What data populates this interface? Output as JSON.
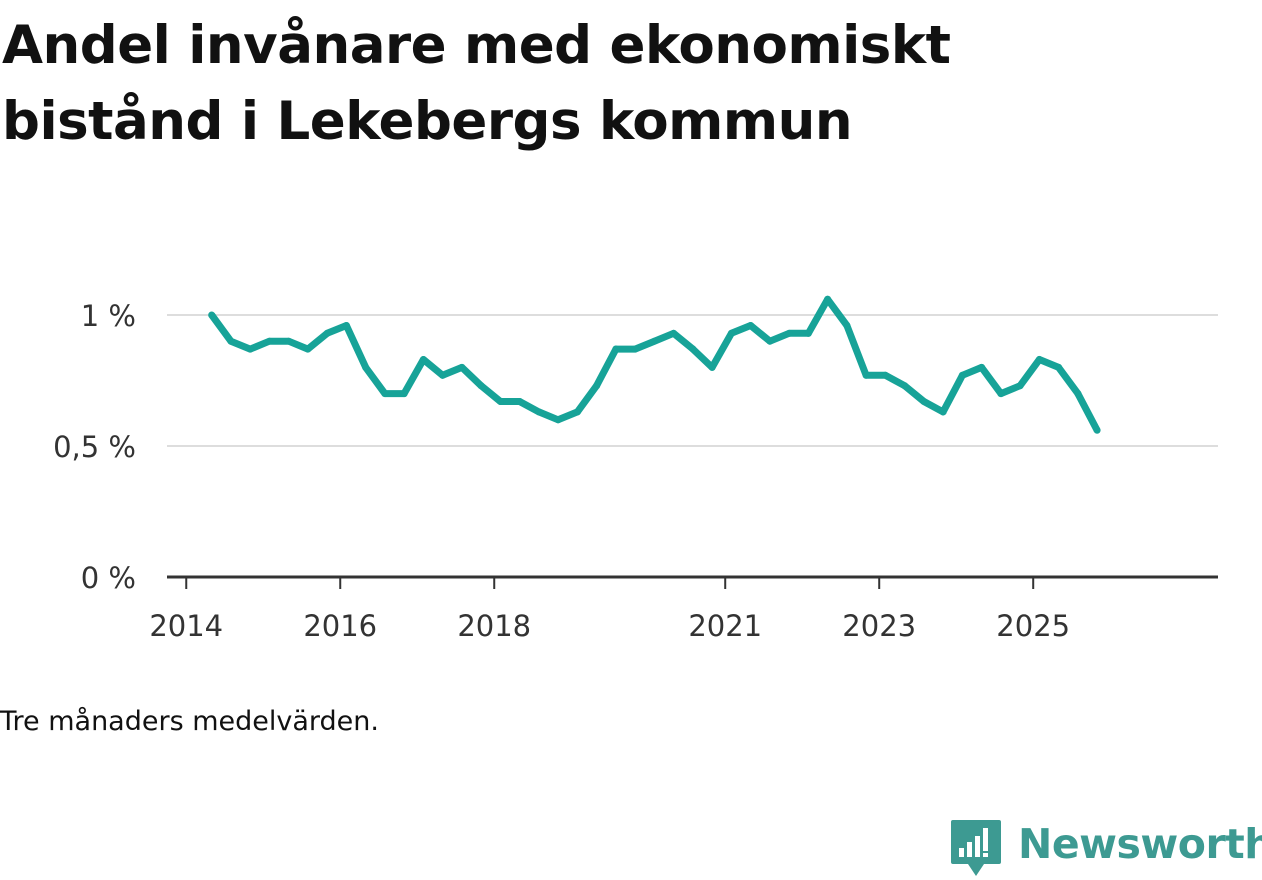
{
  "title": "Andel invånare med ekonomiskt bistånd i Lekebergs kommun",
  "caption": "Tre månaders medelvärden.",
  "brand": {
    "name": "Newsworthy",
    "color": "#3d9a92",
    "icon": "newsworthy-logo-icon"
  },
  "colors": {
    "line": "#17a398",
    "grid": "#dddddd",
    "axis": "#333333",
    "tick_text": "#333333"
  },
  "chart_data": {
    "type": "line",
    "title": "Andel invånare med ekonomiskt bistånd i Lekebergs kommun",
    "xlabel": "",
    "ylabel": "",
    "y_unit": "%",
    "ylim": [
      0,
      1.3
    ],
    "y_ticks": [
      {
        "value": 0,
        "label": "0 %"
      },
      {
        "value": 0.5,
        "label": "0,5 %"
      },
      {
        "value": 1.0,
        "label": "1 %"
      }
    ],
    "x_ticks": [
      {
        "value": 2014.0,
        "label": "2014"
      },
      {
        "value": 2016.0,
        "label": "2016"
      },
      {
        "value": 2018.0,
        "label": "2018"
      },
      {
        "value": 2021.0,
        "label": "2021"
      },
      {
        "value": 2023.0,
        "label": "2023"
      },
      {
        "value": 2025.0,
        "label": "2025"
      }
    ],
    "xlim": [
      2013.75,
      2027.4
    ],
    "grid": true,
    "series": [
      {
        "name": "Andel invånare med ekonomiskt bistånd",
        "x": [
          2014.33,
          2014.58,
          2014.83,
          2015.08,
          2015.33,
          2015.58,
          2015.83,
          2016.08,
          2016.33,
          2016.58,
          2016.83,
          2017.08,
          2017.33,
          2017.58,
          2017.83,
          2018.08,
          2018.33,
          2018.58,
          2018.83,
          2019.08,
          2019.33,
          2019.58,
          2019.83,
          2020.08,
          2020.33,
          2020.58,
          2020.83,
          2021.08,
          2021.33,
          2021.58,
          2021.83,
          2022.08,
          2022.33,
          2022.58,
          2022.83,
          2023.08,
          2023.33,
          2023.58,
          2023.83,
          2024.08,
          2024.33,
          2024.58,
          2024.83,
          2025.08,
          2025.33,
          2025.58,
          2025.83
        ],
        "values": [
          1.0,
          0.9,
          0.87,
          0.9,
          0.9,
          0.87,
          0.93,
          0.96,
          0.8,
          0.7,
          0.7,
          0.83,
          0.77,
          0.8,
          0.73,
          0.67,
          0.67,
          0.63,
          0.6,
          0.63,
          0.73,
          0.87,
          0.87,
          0.9,
          0.93,
          0.87,
          0.8,
          0.93,
          0.96,
          0.9,
          0.93,
          0.93,
          1.06,
          0.96,
          0.77,
          0.77,
          0.73,
          0.67,
          0.63,
          0.77,
          0.8,
          0.7,
          0.73,
          0.83,
          0.8,
          0.7,
          0.56
        ]
      }
    ]
  }
}
